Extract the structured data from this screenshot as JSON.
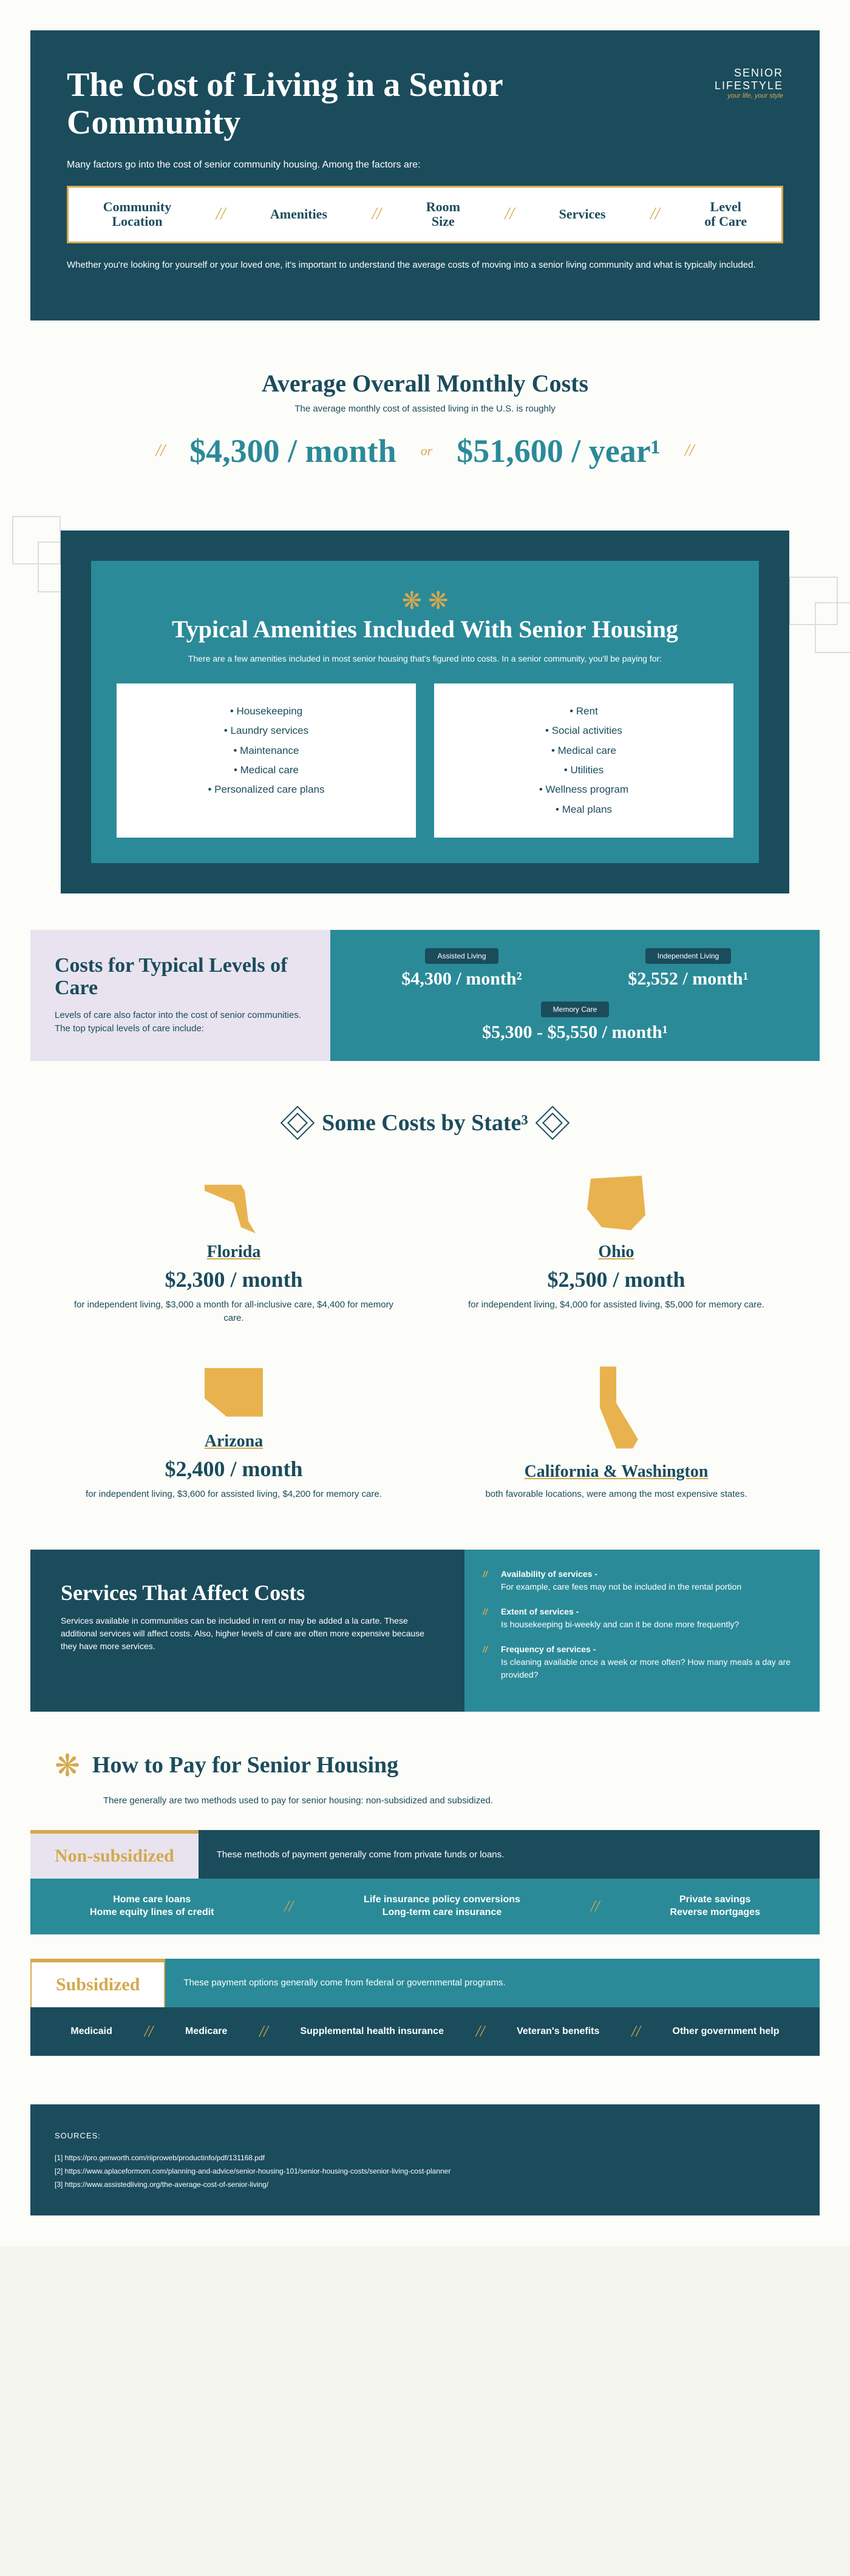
{
  "header": {
    "title": "The Cost of Living in a Senior Community",
    "logo_main": "SENIOR LIFESTYLE",
    "logo_sub": "your life, your style",
    "intro": "Many factors go into the cost of senior community housing. Among the factors are:",
    "factors": [
      "Community Location",
      "Amenities",
      "Room Size",
      "Services",
      "Level of Care"
    ],
    "outro": "Whether you're looking for yourself or your loved one, it's important to understand the average costs of moving into a senior living community and what is typically included."
  },
  "avg": {
    "title": "Average Overall Monthly Costs",
    "sub": "The average monthly cost of assisted living in the U.S. is roughly",
    "month": "$4,300 / month",
    "sep": "or",
    "year": "$51,600 / year¹"
  },
  "amenities": {
    "title": "Typical Amenities Included With Senior Housing",
    "sub": "There are a few amenities included in most senior housing that's figured into costs. In a senior community, you'll be paying for:",
    "list1": [
      "Housekeeping",
      "Laundry services",
      "Maintenance",
      "Medical care",
      "Personalized care plans"
    ],
    "list2": [
      "Rent",
      "Social activities",
      "Medical care",
      "Utilities",
      "Wellness program",
      "Meal plans"
    ]
  },
  "levels": {
    "title": "Costs for Typical Levels of Care",
    "desc": "Levels of care also factor into the cost of senior communities. The top typical levels of care include:",
    "items": [
      {
        "label": "Assisted Living",
        "value": "$4,300 / month²"
      },
      {
        "label": "Independent Living",
        "value": "$2,552 / month¹"
      },
      {
        "label": "Memory Care",
        "value": "$5,300 - $5,550 / month¹"
      }
    ]
  },
  "states": {
    "title": "Some Costs by State³",
    "items": [
      {
        "name": "Florida",
        "shape": "fl",
        "price": "$2,300 / month",
        "desc": "for independent living, $3,000 a month for all-inclusive care, $4,400 for memory care."
      },
      {
        "name": "Ohio",
        "shape": "oh",
        "price": "$2,500 / month",
        "desc": "for independent living, $4,000 for assisted living, $5,000 for memory care."
      },
      {
        "name": "Arizona",
        "shape": "az",
        "price": "$2,400 / month",
        "desc": "for independent living, $3,600 for assisted living, $4,200 for memory care."
      },
      {
        "name": "California & Washington",
        "shape": "ca",
        "price": "",
        "desc": "both favorable locations, were among the most expensive states."
      }
    ]
  },
  "services": {
    "title": "Services That Affect Costs",
    "desc": "Services available in communities can be included in rent or may be added a la carte. These additional services will affect costs. Also, higher levels of care are often more expensive because they have more services.",
    "items": [
      {
        "label": "Availability of services -",
        "text": "For example, care fees may not be included in the rental portion"
      },
      {
        "label": "Extent of services -",
        "text": "Is housekeeping bi-weekly and can it be done more frequently?"
      },
      {
        "label": "Frequency of services -",
        "text": "Is cleaning available once a week or more often? How many meals a day are provided?"
      }
    ]
  },
  "pay": {
    "title": "How to Pay for Senior Housing",
    "intro": "There generally are two methods used to pay for senior housing: non-subsidized and subsidized.",
    "nonsub": {
      "label": "Non-subsidized",
      "desc": "These methods of payment generally come from private funds or loans.",
      "items": [
        "Home care loans\nHome equity lines of credit",
        "Life insurance policy conversions\nLong-term care insurance",
        "Private savings\nReverse mortgages"
      ]
    },
    "sub": {
      "label": "Subsidized",
      "desc": "These payment options generally come from federal or governmental programs.",
      "items": [
        "Medicaid",
        "Medicare",
        "Supplemental health insurance",
        "Veteran's benefits",
        "Other government help"
      ]
    }
  },
  "sources": {
    "title": "SOURCES:",
    "lines": [
      "[1] https://pro.genworth.com/riiproweb/productinfo/pdf/131168.pdf",
      "[2] https://www.aplaceformom.com/planning-and-advice/senior-housing-101/senior-housing-costs/senior-living-cost-planner",
      "[3] https://www.assistedliving.org/the-average-cost-of-senior-living/"
    ]
  }
}
